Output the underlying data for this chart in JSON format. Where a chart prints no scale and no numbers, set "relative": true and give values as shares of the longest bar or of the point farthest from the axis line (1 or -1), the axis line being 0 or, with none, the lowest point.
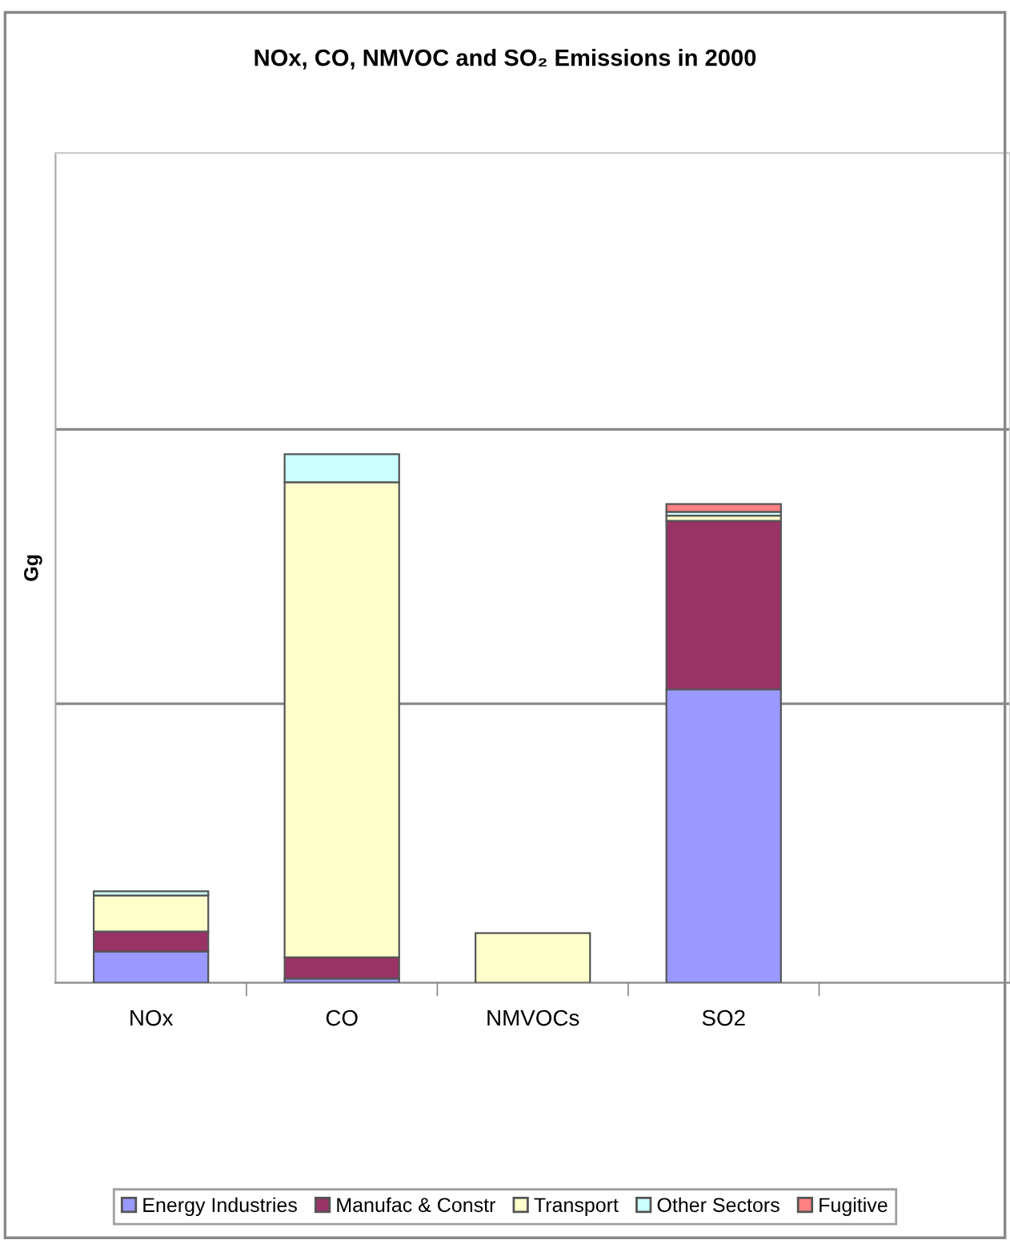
{
  "chart_data": {
    "type": "bar",
    "title": "NOx, CO, NMVOC and SO₂ Emissions in 2000",
    "ylabel": "Gg",
    "categories": [
      "NOx",
      "CO",
      "NMVOCs",
      "SO2",
      null
    ],
    "stacked": true,
    "relative": true,
    "legend": "bottom",
    "ref_lines": [
      {
        "axis": "y",
        "value": 0.528,
        "color": "#888888"
      },
      {
        "axis": "y",
        "value": 1.047,
        "color": "#888888"
      }
    ],
    "series": [
      {
        "name": "Energy Industries",
        "color": "#9999ff",
        "values": [
          0.059,
          0.008,
          null,
          0.555,
          null
        ]
      },
      {
        "name": "Manufac & Constr",
        "color": "#993366",
        "values": [
          0.038,
          0.04,
          null,
          0.319,
          null
        ]
      },
      {
        "name": "Transport",
        "color": "#ffffcc",
        "values": [
          0.068,
          0.899,
          0.094,
          0.01,
          null
        ]
      },
      {
        "name": "Other Sectors",
        "color": "#ccffff",
        "values": [
          0.008,
          0.053,
          null,
          0.007,
          null
        ]
      },
      {
        "name": "Fugitive",
        "color": "#ff8080",
        "values": [
          null,
          null,
          null,
          0.015,
          null
        ]
      }
    ]
  }
}
